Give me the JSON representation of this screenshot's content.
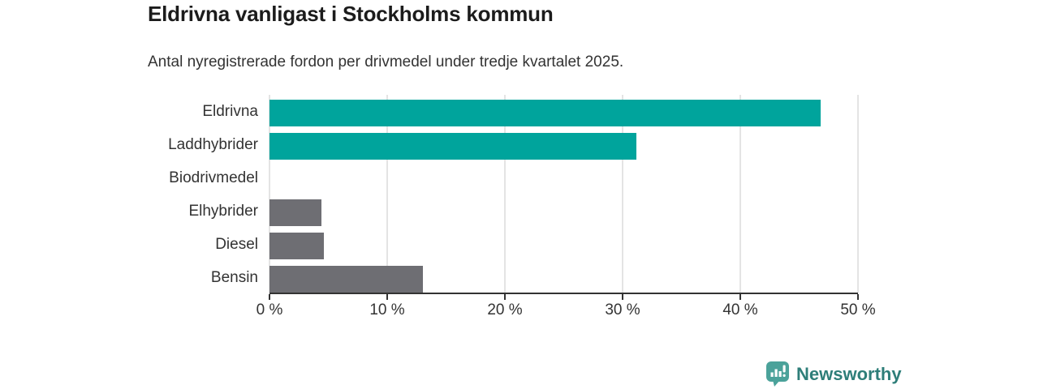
{
  "header": {
    "title": "Eldrivna vanligast i Stockholms kommun",
    "subtitle": "Antal nyregistrerade fordon per drivmedel under tredje kvartalet 2025."
  },
  "chart_data": {
    "type": "bar",
    "orientation": "horizontal",
    "title": "Eldrivna vanligast i Stockholms kommun",
    "subtitle": "Antal nyregistrerade fordon per drivmedel under tredje kvartalet 2025.",
    "categories": [
      "Eldrivna",
      "Laddhybrider",
      "Biodrivmedel",
      "Elhybrider",
      "Diesel",
      "Bensin"
    ],
    "values": [
      46.8,
      31.2,
      0,
      4.4,
      4.6,
      13
    ],
    "unit": "%",
    "bar_colors": [
      "#00a49c",
      "#00a49c",
      "#6e6e73",
      "#6e6e73",
      "#6e6e73",
      "#6e6e73"
    ],
    "xlabel": "",
    "ylabel": "",
    "xlim": [
      0,
      50
    ],
    "xticks": [
      0,
      10,
      20,
      30,
      40,
      50
    ],
    "xtick_labels": [
      "0 %",
      "10 %",
      "20 %",
      "30 %",
      "40 %",
      "50 %"
    ],
    "grid": true,
    "legend": false
  },
  "colors": {
    "accent_teal": "#00a49c",
    "bar_gray": "#6e6e73",
    "gridline": "#e4e4e4",
    "axis": "#333333",
    "title_text": "#1c1c1c",
    "body_text": "#333333",
    "logo_icon": "#4ba29a",
    "logo_text": "#2e7e79",
    "background": "#ffffff"
  },
  "footer": {
    "brand": "Newsworthy"
  }
}
